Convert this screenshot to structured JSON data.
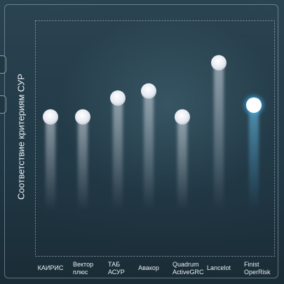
{
  "chart_data": {
    "type": "scatter",
    "title": "",
    "xlabel": "",
    "ylabel": "Соответствие критериям СУР",
    "categories": [
      [
        "КАИРИС"
      ],
      [
        "Вектор",
        "плюс"
      ],
      [
        "ТАБ",
        "АСУР"
      ],
      [
        "Авакор"
      ],
      [
        "Quadrum",
        "ActiveGRC"
      ],
      [
        "Lancelot"
      ],
      [
        "Finist",
        "OperRisk"
      ]
    ],
    "values": [
      59,
      59,
      67,
      70,
      59,
      82,
      64
    ],
    "ylim": [
      0,
      100
    ],
    "highlight_index": 6,
    "grid": false,
    "colors": {
      "point": "#e4e8ef",
      "highlight": "#ffffff",
      "highlight_glow": "#3aa9e8",
      "frame": "#9fb4c0"
    }
  }
}
